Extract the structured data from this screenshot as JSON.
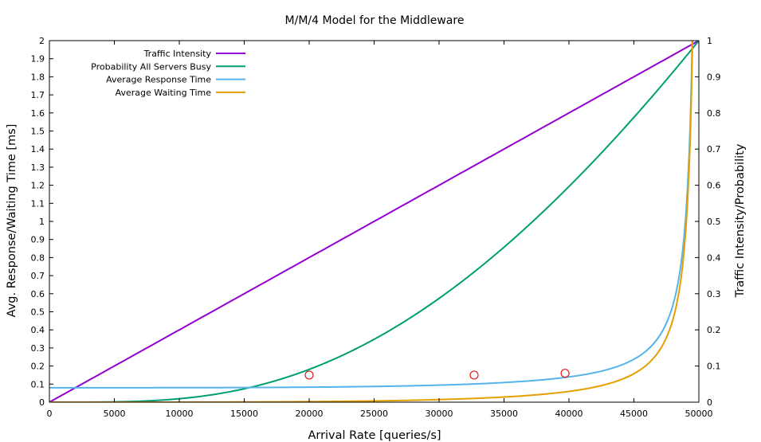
{
  "chart_data": {
    "type": "line",
    "title": "M/M/4 Model for the Middleware",
    "xlabel": "Arrival Rate [queries/s]",
    "ylabel": "Avg. Response/Waiting Time [ms]",
    "y2label": "Traffic Intensity/Probability",
    "xlim": [
      0,
      50000
    ],
    "ylim": [
      0,
      2
    ],
    "y2lim": [
      0,
      1
    ],
    "grid": false,
    "legend_position": "top-left",
    "x_ticks": [
      "0",
      "5000",
      "10000",
      "15000",
      "20000",
      "25000",
      "30000",
      "35000",
      "40000",
      "45000",
      "50000"
    ],
    "y_ticks": [
      "0",
      "0.1",
      "0.2",
      "0.3",
      "0.4",
      "0.5",
      "0.6",
      "0.7",
      "0.8",
      "0.9",
      "1",
      "1.1",
      "1.2",
      "1.3",
      "1.4",
      "1.5",
      "1.6",
      "1.7",
      "1.8",
      "1.9",
      "2"
    ],
    "y2_ticks": [
      "0",
      "0.1",
      "0.2",
      "0.3",
      "0.4",
      "0.5",
      "0.6",
      "0.7",
      "0.8",
      "0.9",
      "1"
    ],
    "model": {
      "servers": 4,
      "service_rate_per_server": 12500
    },
    "series": [
      {
        "name": "Traffic Intensity",
        "color": "#9400d3",
        "axis": "y2",
        "quantity": "traffic_intensity"
      },
      {
        "name": "Probability All Servers Busy",
        "color": "#009e73",
        "axis": "y2",
        "quantity": "probability_all_busy"
      },
      {
        "name": "Average Response Time",
        "color": "#56b4e9",
        "axis": "y",
        "quantity": "response_time_ms"
      },
      {
        "name": "Average Waiting Time",
        "color": "#e69f00",
        "axis": "y",
        "quantity": "waiting_time_ms"
      }
    ],
    "measured_points": {
      "color": "#e41a1c",
      "axis": "y",
      "points": [
        {
          "x": 20000,
          "y": 0.15
        },
        {
          "x": 32700,
          "y": 0.15
        },
        {
          "x": 39700,
          "y": 0.16
        }
      ]
    }
  }
}
